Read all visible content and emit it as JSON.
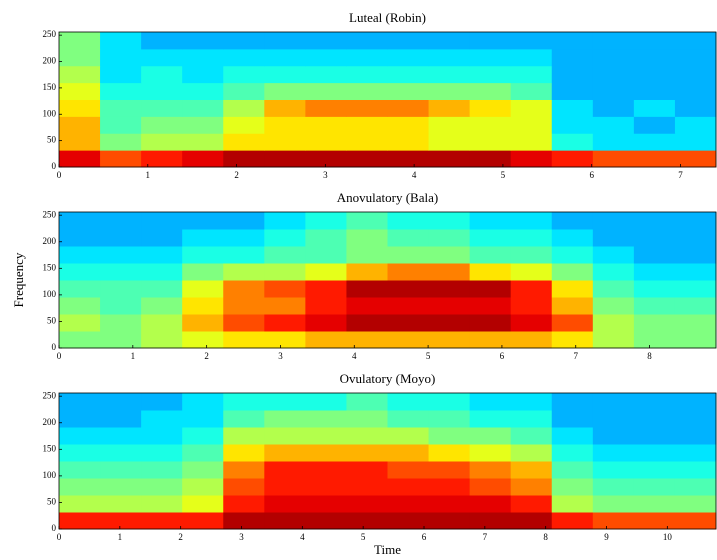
{
  "chart_data": [
    {
      "type": "heatmap",
      "title": "Luteal (Robin)",
      "colormap": "jet",
      "xlim": [
        0,
        7.4
      ],
      "xticks": [
        0,
        1,
        2,
        3,
        4,
        5,
        6,
        7
      ],
      "ylim": [
        0,
        256
      ],
      "yticks": [
        0,
        50,
        100,
        150,
        200,
        250
      ],
      "z": [
        [
          0.9,
          0.8,
          0.85,
          0.9,
          0.95,
          0.95,
          0.95,
          0.95,
          0.95,
          0.95,
          0.95,
          0.9,
          0.85,
          0.8,
          0.8,
          0.8
        ],
        [
          0.7,
          0.5,
          0.55,
          0.55,
          0.65,
          0.65,
          0.65,
          0.65,
          0.65,
          0.6,
          0.6,
          0.6,
          0.4,
          0.35,
          0.35,
          0.35
        ],
        [
          0.7,
          0.45,
          0.5,
          0.5,
          0.6,
          0.65,
          0.65,
          0.65,
          0.65,
          0.6,
          0.6,
          0.6,
          0.35,
          0.35,
          0.3,
          0.35
        ],
        [
          0.65,
          0.45,
          0.45,
          0.45,
          0.55,
          0.7,
          0.75,
          0.75,
          0.75,
          0.7,
          0.65,
          0.6,
          0.35,
          0.3,
          0.35,
          0.3
        ],
        [
          0.6,
          0.4,
          0.4,
          0.4,
          0.45,
          0.5,
          0.5,
          0.5,
          0.5,
          0.5,
          0.5,
          0.45,
          0.3,
          0.3,
          0.3,
          0.3
        ],
        [
          0.55,
          0.35,
          0.4,
          0.35,
          0.4,
          0.4,
          0.4,
          0.4,
          0.4,
          0.4,
          0.4,
          0.4,
          0.3,
          0.3,
          0.3,
          0.3
        ],
        [
          0.5,
          0.35,
          0.35,
          0.35,
          0.35,
          0.35,
          0.35,
          0.35,
          0.35,
          0.35,
          0.35,
          0.35,
          0.3,
          0.3,
          0.3,
          0.3
        ],
        [
          0.5,
          0.35,
          0.3,
          0.3,
          0.3,
          0.3,
          0.3,
          0.3,
          0.3,
          0.3,
          0.3,
          0.3,
          0.3,
          0.3,
          0.3,
          0.3
        ]
      ]
    },
    {
      "type": "heatmap",
      "title": "Anovulatory (Bala)",
      "ylabel": "Frequency",
      "colormap": "jet",
      "xlim": [
        0,
        8.9
      ],
      "xticks": [
        0,
        1,
        2,
        3,
        4,
        5,
        6,
        7,
        8
      ],
      "ylim": [
        0,
        256
      ],
      "yticks": [
        0,
        50,
        100,
        150,
        200,
        250
      ],
      "z": [
        [
          0.5,
          0.5,
          0.55,
          0.6,
          0.65,
          0.65,
          0.7,
          0.7,
          0.7,
          0.7,
          0.7,
          0.7,
          0.65,
          0.55,
          0.5,
          0.5
        ],
        [
          0.55,
          0.5,
          0.55,
          0.7,
          0.8,
          0.85,
          0.9,
          0.95,
          0.95,
          0.95,
          0.95,
          0.9,
          0.8,
          0.55,
          0.5,
          0.5
        ],
        [
          0.5,
          0.45,
          0.5,
          0.65,
          0.75,
          0.75,
          0.85,
          0.9,
          0.9,
          0.9,
          0.9,
          0.85,
          0.7,
          0.5,
          0.45,
          0.45
        ],
        [
          0.45,
          0.45,
          0.45,
          0.6,
          0.75,
          0.8,
          0.85,
          0.95,
          0.95,
          0.95,
          0.95,
          0.85,
          0.65,
          0.45,
          0.4,
          0.4
        ],
        [
          0.4,
          0.4,
          0.4,
          0.5,
          0.55,
          0.55,
          0.6,
          0.7,
          0.75,
          0.75,
          0.65,
          0.6,
          0.5,
          0.4,
          0.35,
          0.35
        ],
        [
          0.35,
          0.35,
          0.35,
          0.4,
          0.4,
          0.45,
          0.45,
          0.5,
          0.5,
          0.5,
          0.45,
          0.45,
          0.4,
          0.35,
          0.3,
          0.3
        ],
        [
          0.3,
          0.3,
          0.3,
          0.35,
          0.35,
          0.4,
          0.45,
          0.5,
          0.45,
          0.45,
          0.4,
          0.4,
          0.35,
          0.3,
          0.3,
          0.3
        ],
        [
          0.3,
          0.3,
          0.3,
          0.3,
          0.3,
          0.35,
          0.4,
          0.45,
          0.4,
          0.4,
          0.35,
          0.35,
          0.3,
          0.3,
          0.3,
          0.3
        ]
      ]
    },
    {
      "type": "heatmap",
      "title": "Ovulatory (Moyo)",
      "xlabel": "Time",
      "colormap": "jet",
      "xlim": [
        0,
        10.8
      ],
      "xticks": [
        0,
        1,
        2,
        3,
        4,
        5,
        6,
        7,
        8,
        9,
        10
      ],
      "ylim": [
        0,
        256
      ],
      "yticks": [
        0,
        50,
        100,
        150,
        200,
        250
      ],
      "z": [
        [
          0.85,
          0.85,
          0.85,
          0.85,
          0.95,
          0.95,
          0.95,
          0.95,
          0.95,
          0.95,
          0.95,
          0.95,
          0.85,
          0.8,
          0.8,
          0.8
        ],
        [
          0.55,
          0.55,
          0.55,
          0.6,
          0.85,
          0.9,
          0.9,
          0.9,
          0.9,
          0.9,
          0.9,
          0.85,
          0.55,
          0.5,
          0.5,
          0.5
        ],
        [
          0.5,
          0.5,
          0.5,
          0.55,
          0.8,
          0.85,
          0.85,
          0.85,
          0.85,
          0.85,
          0.8,
          0.75,
          0.5,
          0.45,
          0.45,
          0.45
        ],
        [
          0.45,
          0.45,
          0.45,
          0.5,
          0.75,
          0.85,
          0.85,
          0.85,
          0.8,
          0.8,
          0.75,
          0.7,
          0.45,
          0.4,
          0.4,
          0.4
        ],
        [
          0.4,
          0.4,
          0.4,
          0.45,
          0.65,
          0.7,
          0.7,
          0.7,
          0.7,
          0.65,
          0.6,
          0.55,
          0.4,
          0.35,
          0.35,
          0.35
        ],
        [
          0.35,
          0.35,
          0.35,
          0.4,
          0.55,
          0.55,
          0.55,
          0.55,
          0.55,
          0.5,
          0.5,
          0.45,
          0.35,
          0.3,
          0.3,
          0.3
        ],
        [
          0.3,
          0.3,
          0.35,
          0.35,
          0.45,
          0.5,
          0.5,
          0.5,
          0.45,
          0.45,
          0.4,
          0.4,
          0.3,
          0.3,
          0.3,
          0.3
        ],
        [
          0.3,
          0.3,
          0.3,
          0.35,
          0.4,
          0.4,
          0.4,
          0.45,
          0.4,
          0.4,
          0.35,
          0.35,
          0.3,
          0.3,
          0.3,
          0.3
        ]
      ]
    }
  ]
}
